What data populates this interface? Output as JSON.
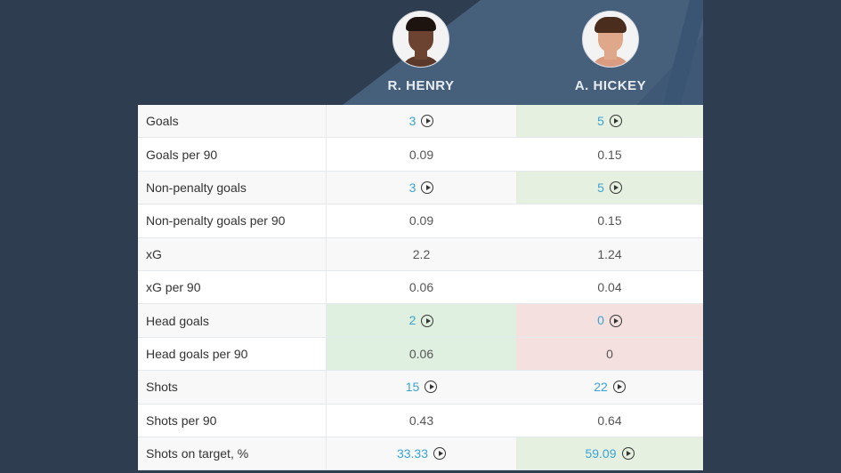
{
  "colors": {
    "background": "#2e3d50",
    "header_accent": "#46607b",
    "link": "#3aa3d4",
    "better": "#e0f0e0",
    "worse": "#f5e0e0"
  },
  "players": [
    {
      "name": "R. HENRY",
      "avatar": "avatar-r-henry"
    },
    {
      "name": "A. HICKEY",
      "avatar": "avatar-a-hickey"
    }
  ],
  "rows": [
    {
      "label": "Goals",
      "p1": "3",
      "p2": "5",
      "p1_link": true,
      "p2_link": true,
      "p1_state": "",
      "p2_state": "good"
    },
    {
      "label": "Goals per 90",
      "p1": "0.09",
      "p2": "0.15",
      "p1_link": false,
      "p2_link": false,
      "p1_state": "",
      "p2_state": ""
    },
    {
      "label": "Non-penalty goals",
      "p1": "3",
      "p2": "5",
      "p1_link": true,
      "p2_link": true,
      "p1_state": "",
      "p2_state": "good"
    },
    {
      "label": "Non-penalty goals per 90",
      "p1": "0.09",
      "p2": "0.15",
      "p1_link": false,
      "p2_link": false,
      "p1_state": "",
      "p2_state": ""
    },
    {
      "label": "xG",
      "p1": "2.2",
      "p2": "1.24",
      "p1_link": false,
      "p2_link": false,
      "p1_state": "",
      "p2_state": ""
    },
    {
      "label": "xG per 90",
      "p1": "0.06",
      "p2": "0.04",
      "p1_link": false,
      "p2_link": false,
      "p1_state": "",
      "p2_state": ""
    },
    {
      "label": "Head goals",
      "p1": "2",
      "p2": "0",
      "p1_link": true,
      "p2_link": true,
      "p1_state": "good",
      "p2_state": "bad"
    },
    {
      "label": "Head goals per 90",
      "p1": "0.06",
      "p2": "0",
      "p1_link": false,
      "p2_link": false,
      "p1_state": "good",
      "p2_state": "bad"
    },
    {
      "label": "Shots",
      "p1": "15",
      "p2": "22",
      "p1_link": true,
      "p2_link": true,
      "p1_state": "",
      "p2_state": ""
    },
    {
      "label": "Shots per 90",
      "p1": "0.43",
      "p2": "0.64",
      "p1_link": false,
      "p2_link": false,
      "p1_state": "",
      "p2_state": ""
    },
    {
      "label": "Shots on target, %",
      "p1": "33.33",
      "p2": "59.09",
      "p1_link": true,
      "p2_link": true,
      "p1_state": "",
      "p2_state": "good"
    }
  ]
}
